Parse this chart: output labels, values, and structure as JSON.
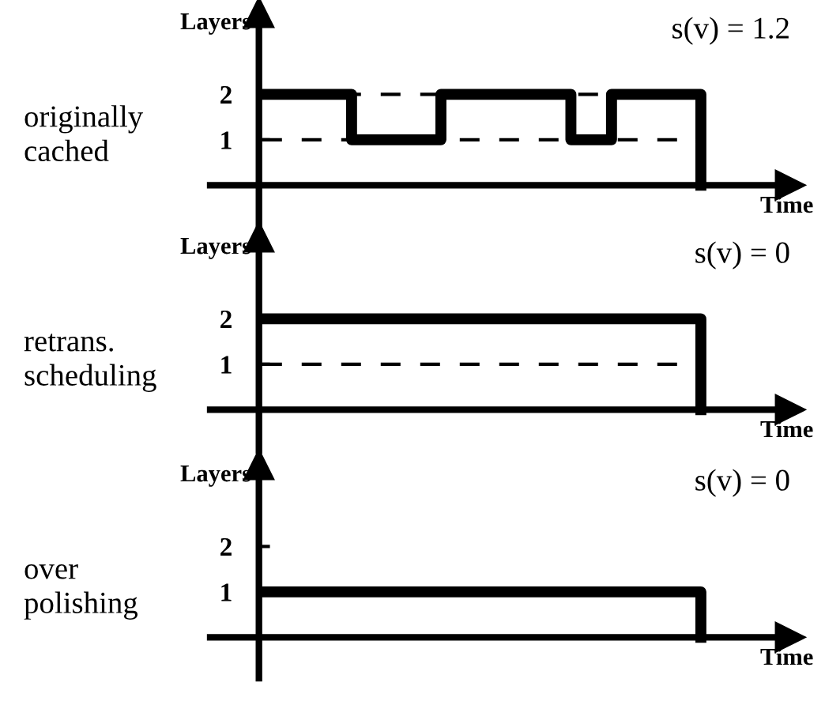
{
  "chart_data": [
    {
      "type": "step",
      "title": "s(v) = 1.2",
      "annotations": [
        "originally\ncached"
      ],
      "xlabel": "Time",
      "ylabel": "Layers",
      "color": "#000000",
      "categories": [
        null,
        null,
        null,
        null,
        null,
        null,
        null,
        null,
        null,
        null,
        null,
        null,
        null,
        null,
        null,
        null,
        null,
        null,
        null,
        null,
        null,
        null,
        null,
        null,
        null,
        null,
        null,
        null,
        null,
        null,
        null,
        null,
        null,
        null,
        null,
        null,
        null,
        null,
        null,
        null,
        null,
        null,
        null,
        null,
        null,
        null,
        null,
        null,
        null,
        null,
        null,
        null,
        null,
        null,
        null
      ],
      "values": [
        2,
        2,
        2,
        2,
        2,
        2,
        2,
        2,
        2,
        2,
        2,
        1,
        1,
        1,
        1,
        1,
        1,
        1,
        1,
        1,
        1,
        1,
        2,
        2,
        2,
        2,
        2,
        2,
        2,
        2,
        2,
        2,
        2,
        2,
        2,
        2,
        2,
        2,
        1,
        1,
        1,
        1,
        1,
        2,
        2,
        2,
        2,
        2,
        2,
        2,
        2,
        2,
        2,
        2,
        0
      ],
      "ylim": [
        -0.9,
        3.8
      ],
      "yticks": [
        1,
        2
      ],
      "ref_lines": [
        {
          "axis": "y",
          "value": 1,
          "line_style": "dashed"
        },
        {
          "axis": "y",
          "value": 2,
          "line_style": "dashed"
        }
      ]
    },
    {
      "type": "step",
      "title": "s(v) = 0",
      "annotations": [
        "retrans.\nscheduling"
      ],
      "xlabel": "Time",
      "ylabel": "Layers",
      "color": "#000000",
      "categories": [
        null,
        null,
        null,
        null,
        null,
        null,
        null,
        null,
        null,
        null,
        null,
        null,
        null,
        null,
        null,
        null,
        null,
        null,
        null,
        null,
        null,
        null,
        null,
        null,
        null,
        null,
        null,
        null,
        null,
        null,
        null,
        null,
        null,
        null,
        null,
        null,
        null,
        null,
        null,
        null,
        null,
        null,
        null,
        null,
        null,
        null,
        null,
        null,
        null,
        null,
        null,
        null,
        null,
        null,
        null
      ],
      "values": [
        2,
        2,
        2,
        2,
        2,
        2,
        2,
        2,
        2,
        2,
        2,
        2,
        2,
        2,
        2,
        2,
        2,
        2,
        2,
        2,
        2,
        2,
        2,
        2,
        2,
        2,
        2,
        2,
        2,
        2,
        2,
        2,
        2,
        2,
        2,
        2,
        2,
        2,
        2,
        2,
        2,
        2,
        2,
        2,
        2,
        2,
        2,
        2,
        2,
        2,
        2,
        2,
        2,
        2,
        0
      ],
      "ylim": [
        -0.9,
        3.8
      ],
      "yticks": [
        1,
        2
      ],
      "ref_lines": [
        {
          "axis": "y",
          "value": 1,
          "line_style": "dashed"
        }
      ]
    },
    {
      "type": "step",
      "title": "s(v) = 0",
      "annotations": [
        "over\npolishing"
      ],
      "xlabel": "Time",
      "ylabel": "Layers",
      "color": "#000000",
      "categories": [
        null,
        null,
        null,
        null,
        null,
        null,
        null,
        null,
        null,
        null,
        null,
        null,
        null,
        null,
        null,
        null,
        null,
        null,
        null,
        null,
        null,
        null,
        null,
        null,
        null,
        null,
        null,
        null,
        null,
        null,
        null,
        null,
        null,
        null,
        null,
        null,
        null,
        null,
        null,
        null,
        null,
        null,
        null,
        null,
        null,
        null,
        null,
        null,
        null,
        null,
        null,
        null,
        null,
        null,
        null
      ],
      "values": [
        1,
        1,
        1,
        1,
        1,
        1,
        1,
        1,
        1,
        1,
        1,
        1,
        1,
        1,
        1,
        1,
        1,
        1,
        1,
        1,
        1,
        1,
        1,
        1,
        1,
        1,
        1,
        1,
        1,
        1,
        1,
        1,
        1,
        1,
        1,
        1,
        1,
        1,
        1,
        1,
        1,
        1,
        1,
        1,
        1,
        1,
        1,
        1,
        1,
        1,
        1,
        1,
        1,
        1,
        0
      ],
      "ylim": [
        -0.9,
        3.8
      ],
      "yticks": [
        1,
        2
      ]
    }
  ]
}
